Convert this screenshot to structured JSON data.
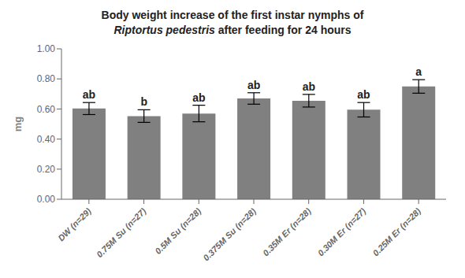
{
  "chart_data": {
    "type": "bar",
    "title": "Body weight increase of the first instar nymphs of",
    "subtitle": "Riptortus pedestris after feeding for 24 hours",
    "ylabel": "mg",
    "categories": [
      "DW (n=29)",
      "0.75M Su (n=27)",
      "0.5M Su (n=28)",
      "0.375M Su (n=28)",
      "0.35M Er (n=28)",
      "0.30M Er (n=27)",
      "0.25M Er (n=28)"
    ],
    "values": [
      0.603,
      0.553,
      0.57,
      0.67,
      0.655,
      0.595,
      0.75
    ],
    "errors": [
      0.04,
      0.042,
      0.055,
      0.038,
      0.042,
      0.048,
      0.045
    ],
    "significance": [
      "ab",
      "b",
      "ab",
      "ab",
      "ab",
      "ab",
      "a"
    ],
    "color": "#808080",
    "ylim": [
      0.0,
      1.0
    ],
    "yticks": [
      {
        "value": 0.0,
        "label": "0.00"
      },
      {
        "value": 0.2,
        "label": "0.20"
      },
      {
        "value": 0.4,
        "label": "0.40"
      },
      {
        "value": 0.6,
        "label": "0.60"
      },
      {
        "value": 0.8,
        "label": "0.80"
      },
      {
        "value": 1.0,
        "label": "1.00"
      }
    ],
    "grid": false
  }
}
